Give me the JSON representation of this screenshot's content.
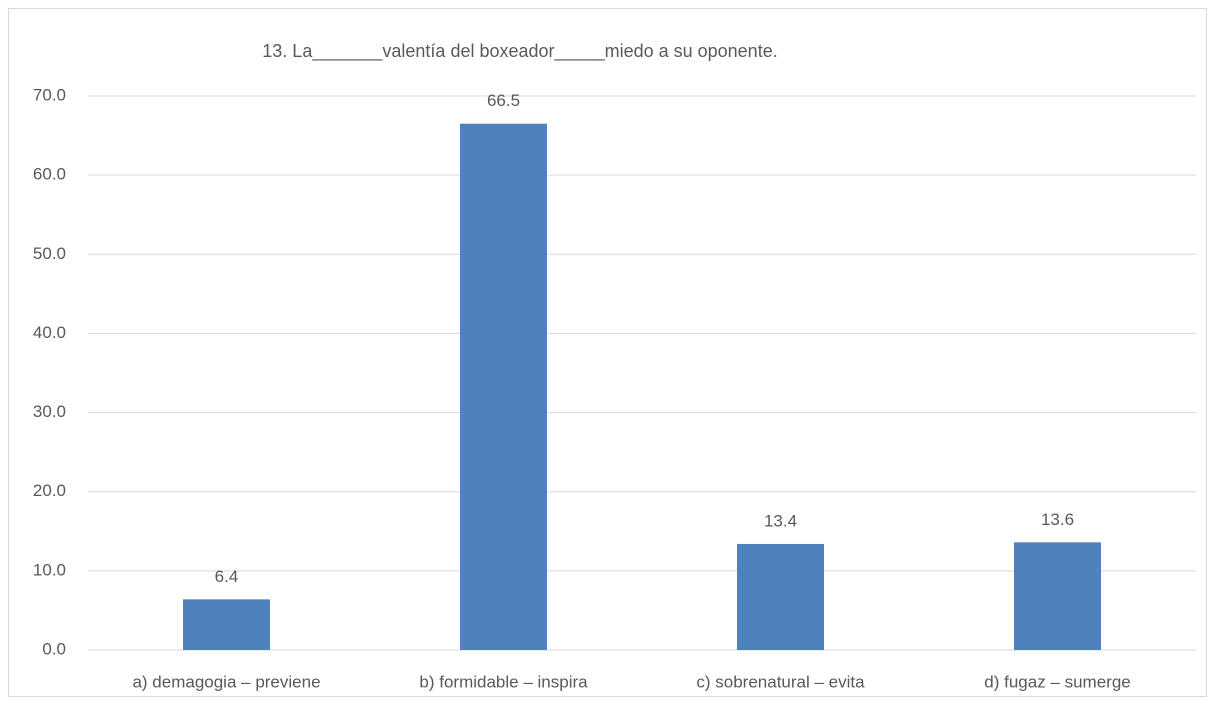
{
  "chart_data": {
    "type": "bar",
    "title": "13. La_______valentía del boxeador_____miedo a su oponente.",
    "categories": [
      "a) demagogia – previene",
      "b) formidable – inspira",
      "c) sobrenatural – evita",
      "d) fugaz – sumerge"
    ],
    "values": [
      6.4,
      66.5,
      13.4,
      13.6
    ],
    "color": "#4f81bd",
    "ylim": [
      0,
      70
    ],
    "yticks": [
      {
        "value": 0,
        "label": "0.0"
      },
      {
        "value": 10,
        "label": "10.0"
      },
      {
        "value": 20,
        "label": "20.0"
      },
      {
        "value": 30,
        "label": "30.0"
      },
      {
        "value": 40,
        "label": "40.0"
      },
      {
        "value": 50,
        "label": "50.0"
      },
      {
        "value": 60,
        "label": "60.0"
      },
      {
        "value": 70,
        "label": "70.0"
      }
    ],
    "grid": true
  }
}
